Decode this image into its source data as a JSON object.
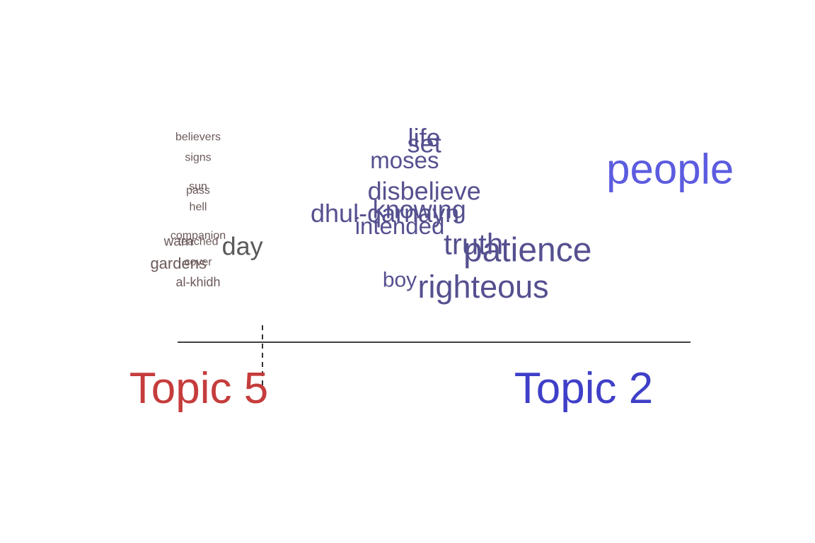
{
  "chart_data": {
    "type": "scatter",
    "title": "",
    "topic_left": "Topic 5",
    "topic_right": "Topic 2",
    "colors": {
      "topic_left": "#c63c3c",
      "topic_right": "#3f3fc8",
      "axis": "#000000"
    },
    "words": [
      {
        "word": "believers",
        "x": 0.0,
        "y": 0.95,
        "size": 16,
        "color": "#6d5a5a"
      },
      {
        "word": "signs",
        "x": 0.0,
        "y": 0.85,
        "size": 16,
        "color": "#6d5a5a"
      },
      {
        "word": "sun",
        "x": 0.0,
        "y": 0.71,
        "size": 16,
        "color": "#6d5a5a"
      },
      {
        "word": "pass",
        "x": 0.0,
        "y": 0.69,
        "size": 16,
        "color": "#6d5a5a"
      },
      {
        "word": "hell",
        "x": 0.0,
        "y": 0.61,
        "size": 16,
        "color": "#6d5a5a"
      },
      {
        "word": "companion",
        "x": 0.0,
        "y": 0.47,
        "size": 16,
        "color": "#6d5a5a"
      },
      {
        "word": "teached",
        "x": 0.0,
        "y": 0.44,
        "size": 16,
        "color": "#6d5a5a"
      },
      {
        "word": "warn",
        "x": -0.04,
        "y": 0.44,
        "size": 19,
        "color": "#6d5a5a"
      },
      {
        "word": "day",
        "x": 0.09,
        "y": 0.41,
        "size": 36,
        "color": "#5a5a5a"
      },
      {
        "word": "gardens",
        "x": -0.04,
        "y": 0.33,
        "size": 22,
        "color": "#6d5a5a"
      },
      {
        "word": "cover",
        "x": 0.0,
        "y": 0.34,
        "size": 16,
        "color": "#6d5a5a"
      },
      {
        "word": "al-khidh",
        "x": 0.0,
        "y": 0.24,
        "size": 18,
        "color": "#6d5a5a"
      },
      {
        "word": "life",
        "x": 0.46,
        "y": 0.94,
        "size": 36,
        "color": "#55508f"
      },
      {
        "word": "set",
        "x": 0.46,
        "y": 0.91,
        "size": 36,
        "color": "#55508f"
      },
      {
        "word": "moses",
        "x": 0.42,
        "y": 0.83,
        "size": 33,
        "color": "#55508f"
      },
      {
        "word": "people",
        "x": 0.96,
        "y": 0.78,
        "size": 60,
        "color": "#5c5ce0"
      },
      {
        "word": "disbelieve",
        "x": 0.46,
        "y": 0.68,
        "size": 36,
        "color": "#55508f"
      },
      {
        "word": "knowing",
        "x": 0.45,
        "y": 0.59,
        "size": 36,
        "color": "#55508f"
      },
      {
        "word": "dhul-qarnayn",
        "x": 0.38,
        "y": 0.57,
        "size": 36,
        "color": "#55508f"
      },
      {
        "word": "intended",
        "x": 0.41,
        "y": 0.51,
        "size": 33,
        "color": "#55508f"
      },
      {
        "word": "truth",
        "x": 0.56,
        "y": 0.42,
        "size": 42,
        "color": "#55508f"
      },
      {
        "word": "patience",
        "x": 0.67,
        "y": 0.39,
        "size": 48,
        "color": "#55508f"
      },
      {
        "word": "boy",
        "x": 0.41,
        "y": 0.25,
        "size": 30,
        "color": "#55508f"
      },
      {
        "word": "righteous",
        "x": 0.58,
        "y": 0.21,
        "size": 45,
        "color": "#55508f"
      }
    ],
    "xlim": [
      -0.08,
      1.0
    ],
    "ylim": [
      0.0,
      1.0
    ],
    "divider_x": 0.16
  }
}
